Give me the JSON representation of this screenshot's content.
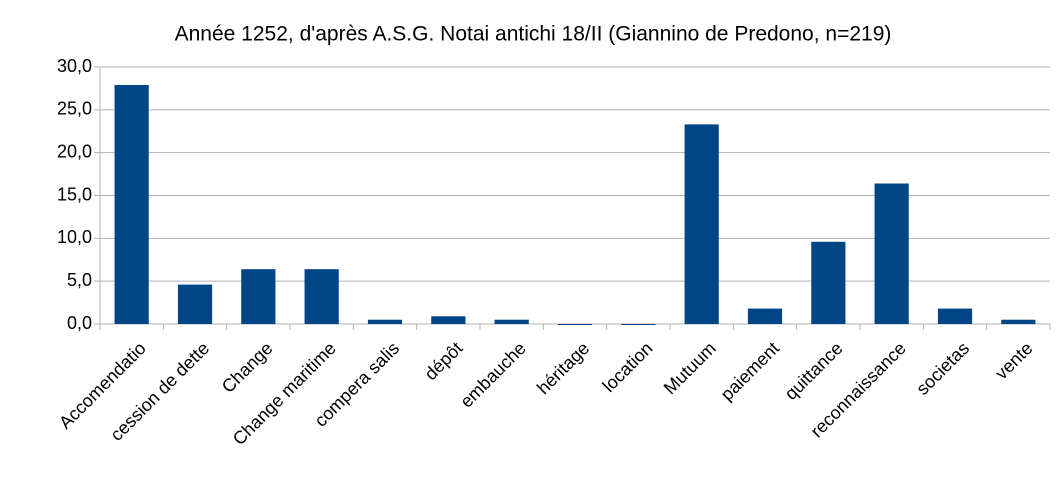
{
  "chart_data": {
    "type": "bar",
    "title": "Année 1252, d'après A.S.G. Notai antichi 18/II (Giannino de Predono, n=219)",
    "categories": [
      "Accomendatio",
      "cession de dette",
      "Change",
      "Change maritime",
      "compera salis",
      "dépôt",
      "embauche",
      "héritage",
      "location",
      "Mutuum",
      "paiement",
      "quittance",
      "reconnaissance",
      "societas",
      "vente"
    ],
    "values": [
      27.9,
      4.6,
      6.4,
      6.4,
      0.5,
      0.9,
      0.5,
      0,
      0,
      23.3,
      1.8,
      9.6,
      16.4,
      1.8,
      0.5
    ],
    "color": "#004586",
    "ylim": [
      0,
      30
    ],
    "yticks": [
      {
        "value": 0,
        "label": "0,0"
      },
      {
        "value": 5,
        "label": "5,0"
      },
      {
        "value": 10,
        "label": "10,0"
      },
      {
        "value": 15,
        "label": "15,0"
      },
      {
        "value": 20,
        "label": "20,0"
      },
      {
        "value": 25,
        "label": "25,0"
      },
      {
        "value": 30,
        "label": "30,0"
      }
    ],
    "grid": true
  }
}
